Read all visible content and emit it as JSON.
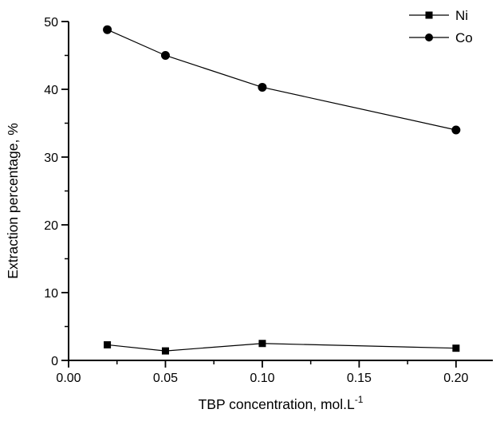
{
  "figure": {
    "background_color": "#ffffff",
    "foreground_color": "#000000"
  },
  "chart_data": {
    "type": "line",
    "title": "",
    "xlabel": "TBP concentration, mol.L⁻¹",
    "xlabel_parts": [
      {
        "text": "TBP concentration, mol.L",
        "sup": false
      },
      {
        "text": "-1",
        "sup": true
      }
    ],
    "ylabel": "Extraction percentage, %",
    "xlim": [
      0,
      0.219
    ],
    "ylim": [
      0,
      50
    ],
    "grid": false,
    "x_major_ticks": [
      0.0,
      0.05,
      0.1,
      0.15,
      0.2
    ],
    "x_major_tick_labels": [
      "0.00",
      "0.05",
      "0.10",
      "0.15",
      "0.20"
    ],
    "x_minor_ticks": [
      0.025,
      0.075,
      0.125,
      0.175
    ],
    "y_major_ticks": [
      0,
      10,
      20,
      30,
      40,
      50
    ],
    "y_major_tick_labels": [
      "0",
      "10",
      "20",
      "30",
      "40",
      "50"
    ],
    "y_minor_ticks": [
      5,
      15,
      25,
      35,
      45
    ],
    "x": [
      0.02,
      0.05,
      0.1,
      0.2
    ],
    "series": [
      {
        "name": "Ni",
        "marker": "square",
        "color": "#000000",
        "values": [
          2.3,
          1.4,
          2.5,
          1.8
        ]
      },
      {
        "name": "Co",
        "marker": "circle",
        "color": "#000000",
        "values": [
          48.8,
          45.0,
          40.3,
          34.0
        ]
      }
    ],
    "legend": {
      "position": "top-right",
      "entries": [
        "Ni",
        "Co"
      ]
    }
  }
}
